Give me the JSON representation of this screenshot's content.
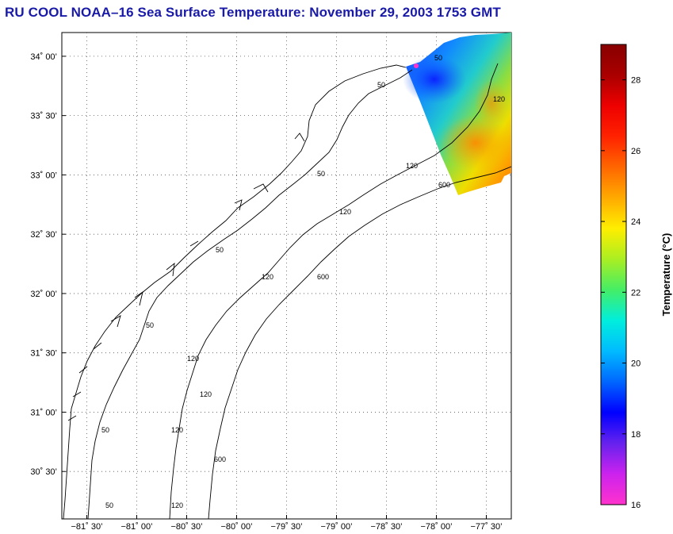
{
  "title": "RU COOL  NOAA–16  Sea Surface Temperature:  November 29, 2003 1753 GMT",
  "map": {
    "lon_range": [
      -81.75,
      -77.25
    ],
    "lat_range": [
      30.1,
      34.2
    ],
    "lon_ticks": [
      {
        "value": -81.5,
        "label": "−81˚ 30’"
      },
      {
        "value": -81.0,
        "label": "−81˚ 00’"
      },
      {
        "value": -80.5,
        "label": "−80˚ 30’"
      },
      {
        "value": -80.0,
        "label": "−80˚ 00’"
      },
      {
        "value": -79.5,
        "label": "−79˚ 30’"
      },
      {
        "value": -79.0,
        "label": "−79˚ 00’"
      },
      {
        "value": -78.5,
        "label": "−78˚ 30’"
      },
      {
        "value": -78.0,
        "label": "−78˚ 00’"
      },
      {
        "value": -77.5,
        "label": "−77˚ 30’"
      }
    ],
    "lat_ticks": [
      {
        "value": 34.0,
        "label": "34˚ 00’"
      },
      {
        "value": 33.5,
        "label": "33˚ 30’"
      },
      {
        "value": 33.0,
        "label": "33˚ 00’"
      },
      {
        "value": 32.5,
        "label": "32˚ 30’"
      },
      {
        "value": 32.0,
        "label": "32˚ 00’"
      },
      {
        "value": 31.5,
        "label": "31˚ 30’"
      },
      {
        "value": 31.0,
        "label": "31˚ 00’"
      },
      {
        "value": 30.5,
        "label": "30˚ 30’"
      }
    ],
    "grid": true,
    "contour_levels": [
      "50",
      "120",
      "600"
    ]
  },
  "colorbar": {
    "label": "Temperature (°C)",
    "range": [
      16,
      29
    ],
    "ticks": [
      "16",
      "18",
      "20",
      "22",
      "24",
      "26",
      "28"
    ],
    "colors": [
      "#ff33cc",
      "#cc22ee",
      "#6622ee",
      "#0000ff",
      "#0066ff",
      "#00bbff",
      "#00eedd",
      "#44ee66",
      "#aaee22",
      "#ffee00",
      "#ffaa00",
      "#ff6600",
      "#ff2200",
      "#ee0000",
      "#aa0000",
      "#880000"
    ]
  }
}
